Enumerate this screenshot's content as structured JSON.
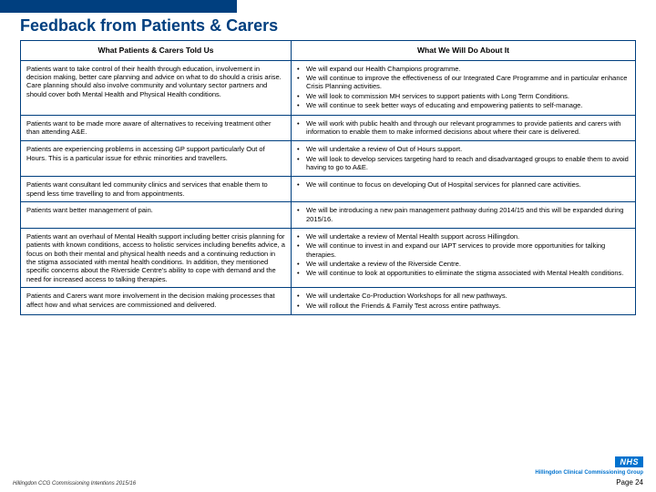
{
  "title": "Feedback from Patients & Carers",
  "columns": {
    "left": "What Patients & Carers Told Us",
    "right": "What We Will Do About It"
  },
  "rows": [
    {
      "left": "Patients want to take control of their health through education, involvement in decision making, better care planning and advice on what to do should a crisis arise. Care planning should also involve community and voluntary sector partners and should cover both Mental Health and Physical Health conditions.",
      "right": [
        "We will expand our Health Champions programme.",
        "We will continue to improve the effectiveness of our Integrated Care Programme and in particular enhance Crisis Planning activities.",
        "We will look to commission MH services to support patients with Long Term Conditions.",
        "We will continue to seek better ways of educating and empowering patients to self-manage."
      ]
    },
    {
      "left": "Patients want to be made more aware of alternatives to receiving treatment other than attending A&E.",
      "right": [
        "We will work with public health and through our relevant programmes to provide patients and carers with information to enable them to make informed decisions about where their care is delivered."
      ]
    },
    {
      "left": "Patients are experiencing problems in accessing GP support particularly Out of Hours. This is a particular issue for ethnic minorities and travellers.",
      "right": [
        "We will undertake a review of Out of Hours support.",
        "We will look to develop services targeting hard to reach and disadvantaged groups to enable them to avoid having to go to A&E."
      ]
    },
    {
      "left": "Patients want consultant led community clinics and services that enable them to spend less time travelling to and from appointments.",
      "right": [
        "We will continue to focus on developing Out of Hospital services for planned care activities."
      ]
    },
    {
      "left": "Patients want better management of pain.",
      "right": [
        "We will be introducing a new pain management pathway during 2014/15 and this will be expanded during 2015/16."
      ]
    },
    {
      "left": "Patients want an overhaul of Mental Health support including better crisis planning for patients with known conditions, access to holistic services including benefits advice, a focus on both their mental and physical health needs and a continuing reduction in the stigma associated with mental health conditions. In addition, they mentioned specific concerns about the Riverside Centre's ability to cope with demand and the need for increased access to talking therapies.",
      "right": [
        "We will undertake a review of Mental Health support across Hillingdon.",
        "We will continue to invest in and expand our IAPT services to provide more opportunities for talking therapies.",
        "We will undertake a review of the Riverside Centre.",
        "We will continue to look at opportunities to eliminate the stigma associated with Mental Health conditions."
      ]
    },
    {
      "left": "Patients and Carers want more involvement in the decision making processes that affect how and what services are commissioned and delivered.",
      "right": [
        "We will undertake Co-Production Workshops for all new pathways.",
        "We will rollout the Friends & Family Test across entire pathways."
      ]
    }
  ],
  "nhs": {
    "logo": "NHS",
    "sub": "Hillingdon Clinical Commissioning Group"
  },
  "footer_left": "Hillingdon CCG Commissioning Intentions 2015/16",
  "footer_right": "Page 24"
}
